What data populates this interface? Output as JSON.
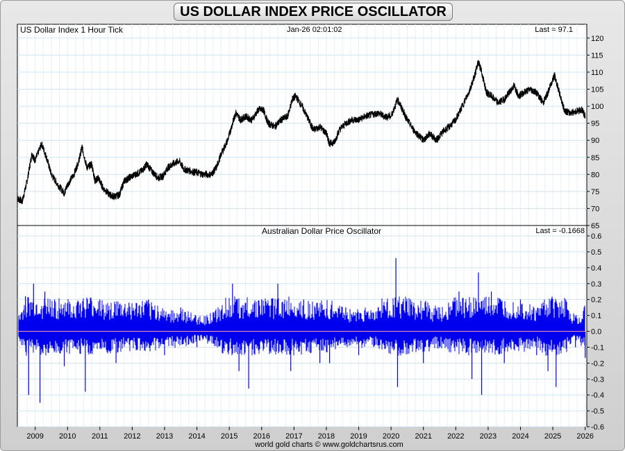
{
  "title": "US DOLLAR INDEX PRICE OSCILLATOR",
  "credit": "world gold charts © www.goldchartsrus.com",
  "colors": {
    "price_line": "#000000",
    "oscillator": "#0000ee",
    "zero_line": "#ff9999",
    "grid": "#d8eaf5"
  },
  "chart_data": [
    {
      "type": "line",
      "label": "US Dollar Index 1 Hour Tick",
      "timestamp": "Jan-26  02:01:02",
      "last_text": "Last = 97.1",
      "ylim": [
        65,
        122
      ],
      "yticks": [
        65,
        70,
        75,
        80,
        85,
        90,
        95,
        100,
        105,
        110,
        115,
        120
      ],
      "x_range": [
        2008.45,
        2026.05
      ],
      "grid": true,
      "series": [
        {
          "values": [
            [
              2008.45,
              73
            ],
            [
              2008.6,
              72
            ],
            [
              2008.75,
              78
            ],
            [
              2008.9,
              86
            ],
            [
              2009.0,
              84
            ],
            [
              2009.2,
              89
            ],
            [
              2009.35,
              85
            ],
            [
              2009.5,
              80
            ],
            [
              2009.7,
              77
            ],
            [
              2009.9,
              74.5
            ],
            [
              2010.0,
              77
            ],
            [
              2010.2,
              80
            ],
            [
              2010.35,
              84
            ],
            [
              2010.45,
              88
            ],
            [
              2010.6,
              82
            ],
            [
              2010.75,
              83
            ],
            [
              2010.85,
              78
            ],
            [
              2010.95,
              79
            ],
            [
              2011.1,
              76
            ],
            [
              2011.3,
              74
            ],
            [
              2011.45,
              73.5
            ],
            [
              2011.6,
              74
            ],
            [
              2011.75,
              78
            ],
            [
              2011.9,
              79
            ],
            [
              2012.1,
              80
            ],
            [
              2012.3,
              81
            ],
            [
              2012.45,
              83
            ],
            [
              2012.6,
              81
            ],
            [
              2012.8,
              79
            ],
            [
              2012.95,
              79.5
            ],
            [
              2013.1,
              82
            ],
            [
              2013.25,
              83
            ],
            [
              2013.45,
              84
            ],
            [
              2013.6,
              81.5
            ],
            [
              2013.8,
              81
            ],
            [
              2014.0,
              80.5
            ],
            [
              2014.2,
              80
            ],
            [
              2014.45,
              80
            ],
            [
              2014.6,
              82
            ],
            [
              2014.75,
              86
            ],
            [
              2014.95,
              90
            ],
            [
              2015.1,
              95
            ],
            [
              2015.2,
              98
            ],
            [
              2015.35,
              96
            ],
            [
              2015.5,
              97
            ],
            [
              2015.7,
              96
            ],
            [
              2015.9,
              99
            ],
            [
              2016.05,
              99
            ],
            [
              2016.2,
              95
            ],
            [
              2016.4,
              94
            ],
            [
              2016.6,
              96
            ],
            [
              2016.8,
              97
            ],
            [
              2016.95,
              102
            ],
            [
              2017.05,
              103
            ],
            [
              2017.25,
              100
            ],
            [
              2017.45,
              96
            ],
            [
              2017.6,
              93
            ],
            [
              2017.8,
              94
            ],
            [
              2018.0,
              92
            ],
            [
              2018.1,
              89
            ],
            [
              2018.25,
              89.5
            ],
            [
              2018.4,
              93
            ],
            [
              2018.6,
              95
            ],
            [
              2018.8,
              96
            ],
            [
              2019.0,
              96
            ],
            [
              2019.2,
              97
            ],
            [
              2019.4,
              97.5
            ],
            [
              2019.6,
              98
            ],
            [
              2019.8,
              97
            ],
            [
              2020.0,
              97
            ],
            [
              2020.2,
              102
            ],
            [
              2020.35,
              99
            ],
            [
              2020.5,
              96
            ],
            [
              2020.7,
              93
            ],
            [
              2020.9,
              91
            ],
            [
              2021.0,
              90
            ],
            [
              2021.2,
              92
            ],
            [
              2021.4,
              90
            ],
            [
              2021.6,
              92.5
            ],
            [
              2021.8,
              94
            ],
            [
              2022.0,
              96
            ],
            [
              2022.2,
              100
            ],
            [
              2022.4,
              104
            ],
            [
              2022.55,
              108
            ],
            [
              2022.7,
              113
            ],
            [
              2022.8,
              110
            ],
            [
              2022.95,
              104
            ],
            [
              2023.1,
              103
            ],
            [
              2023.3,
              101
            ],
            [
              2023.5,
              102
            ],
            [
              2023.65,
              104
            ],
            [
              2023.8,
              106
            ],
            [
              2023.95,
              103
            ],
            [
              2024.1,
              104
            ],
            [
              2024.3,
              105
            ],
            [
              2024.5,
              104
            ],
            [
              2024.7,
              101
            ],
            [
              2024.85,
              104
            ],
            [
              2025.0,
              108
            ],
            [
              2025.05,
              109
            ],
            [
              2025.2,
              104
            ],
            [
              2025.35,
              99
            ],
            [
              2025.5,
              98
            ],
            [
              2025.7,
              98.5
            ],
            [
              2025.9,
              99
            ],
            [
              2026.0,
              97.1
            ]
          ]
        }
      ]
    },
    {
      "type": "bar",
      "label": "Australian Dollar Price Oscillator",
      "last_text": "Last = -0.1668",
      "ylim": [
        -0.6,
        0.6
      ],
      "yticks": [
        0.6,
        0.5,
        0.4,
        0.3,
        0.2,
        0.1,
        0.0,
        -0.1,
        -0.2,
        -0.3,
        -0.4,
        -0.5,
        -0.6
      ],
      "xticks": [
        "2009",
        "2010",
        "2011",
        "2012",
        "2013",
        "2014",
        "2015",
        "2016",
        "2017",
        "2018",
        "2019",
        "2020",
        "2021",
        "2022",
        "2023",
        "2024",
        "2025",
        "2026"
      ],
      "grid": true,
      "series": [
        {
          "values": [
            [
              2008.5,
              0.1
            ],
            [
              2008.7,
              0.22
            ],
            [
              2008.8,
              -0.4
            ],
            [
              2008.95,
              0.3
            ],
            [
              2009.15,
              -0.45
            ],
            [
              2009.3,
              0.25
            ],
            [
              2009.6,
              0.2
            ],
            [
              2009.9,
              -0.22
            ],
            [
              2010.3,
              0.18
            ],
            [
              2010.55,
              -0.38
            ],
            [
              2011.0,
              0.2
            ],
            [
              2011.5,
              -0.2
            ],
            [
              2011.9,
              0.18
            ],
            [
              2012.5,
              0.2
            ],
            [
              2013.0,
              -0.15
            ],
            [
              2013.5,
              0.15
            ],
            [
              2014.0,
              -0.1
            ],
            [
              2014.5,
              0.12
            ],
            [
              2015.1,
              0.3
            ],
            [
              2015.3,
              -0.25
            ],
            [
              2015.6,
              -0.36
            ],
            [
              2016.0,
              0.2
            ],
            [
              2016.5,
              0.3
            ],
            [
              2016.9,
              -0.25
            ],
            [
              2017.3,
              0.2
            ],
            [
              2017.8,
              -0.2
            ],
            [
              2018.1,
              -0.2
            ],
            [
              2018.6,
              0.15
            ],
            [
              2019.0,
              -0.15
            ],
            [
              2019.6,
              0.15
            ],
            [
              2020.15,
              0.46
            ],
            [
              2020.2,
              -0.35
            ],
            [
              2020.6,
              0.2
            ],
            [
              2021.0,
              -0.2
            ],
            [
              2021.5,
              0.15
            ],
            [
              2022.1,
              0.25
            ],
            [
              2022.5,
              -0.3
            ],
            [
              2022.7,
              0.37
            ],
            [
              2022.8,
              -0.4
            ],
            [
              2023.1,
              0.25
            ],
            [
              2023.5,
              -0.2
            ],
            [
              2024.0,
              0.2
            ],
            [
              2024.5,
              -0.15
            ],
            [
              2024.85,
              -0.25
            ],
            [
              2025.1,
              -0.35
            ],
            [
              2025.4,
              0.2
            ],
            [
              2025.7,
              -0.1
            ],
            [
              2026.0,
              -0.1668
            ]
          ]
        }
      ]
    }
  ]
}
